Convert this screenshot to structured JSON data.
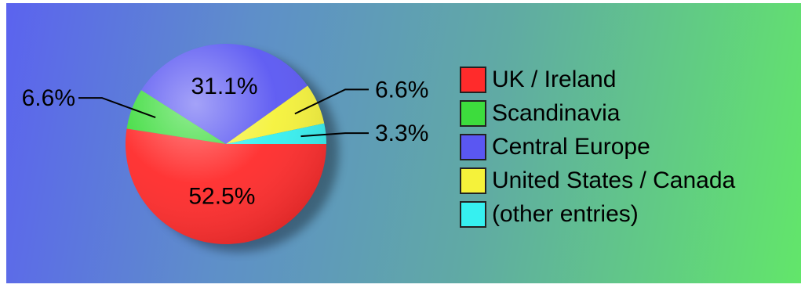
{
  "chart_data": {
    "type": "pie",
    "slices": [
      {
        "label": "UK / Ireland",
        "value": 52.5,
        "display": "52.5%",
        "color": "#ff2b2b"
      },
      {
        "label": "Scandinavia",
        "value": 6.6,
        "display": "6.6%",
        "color": "#3ddc3d"
      },
      {
        "label": "Central Europe",
        "value": 31.1,
        "display": "31.1%",
        "color": "#5a57f2"
      },
      {
        "label": "United States / Canada",
        "value": 6.6,
        "display": "6.6%",
        "color": "#f5f23a"
      },
      {
        "label": "(other entries)",
        "value": 3.3,
        "display": "3.3%",
        "color": "#36f0f0"
      }
    ],
    "legend_position": "right",
    "title": ""
  }
}
